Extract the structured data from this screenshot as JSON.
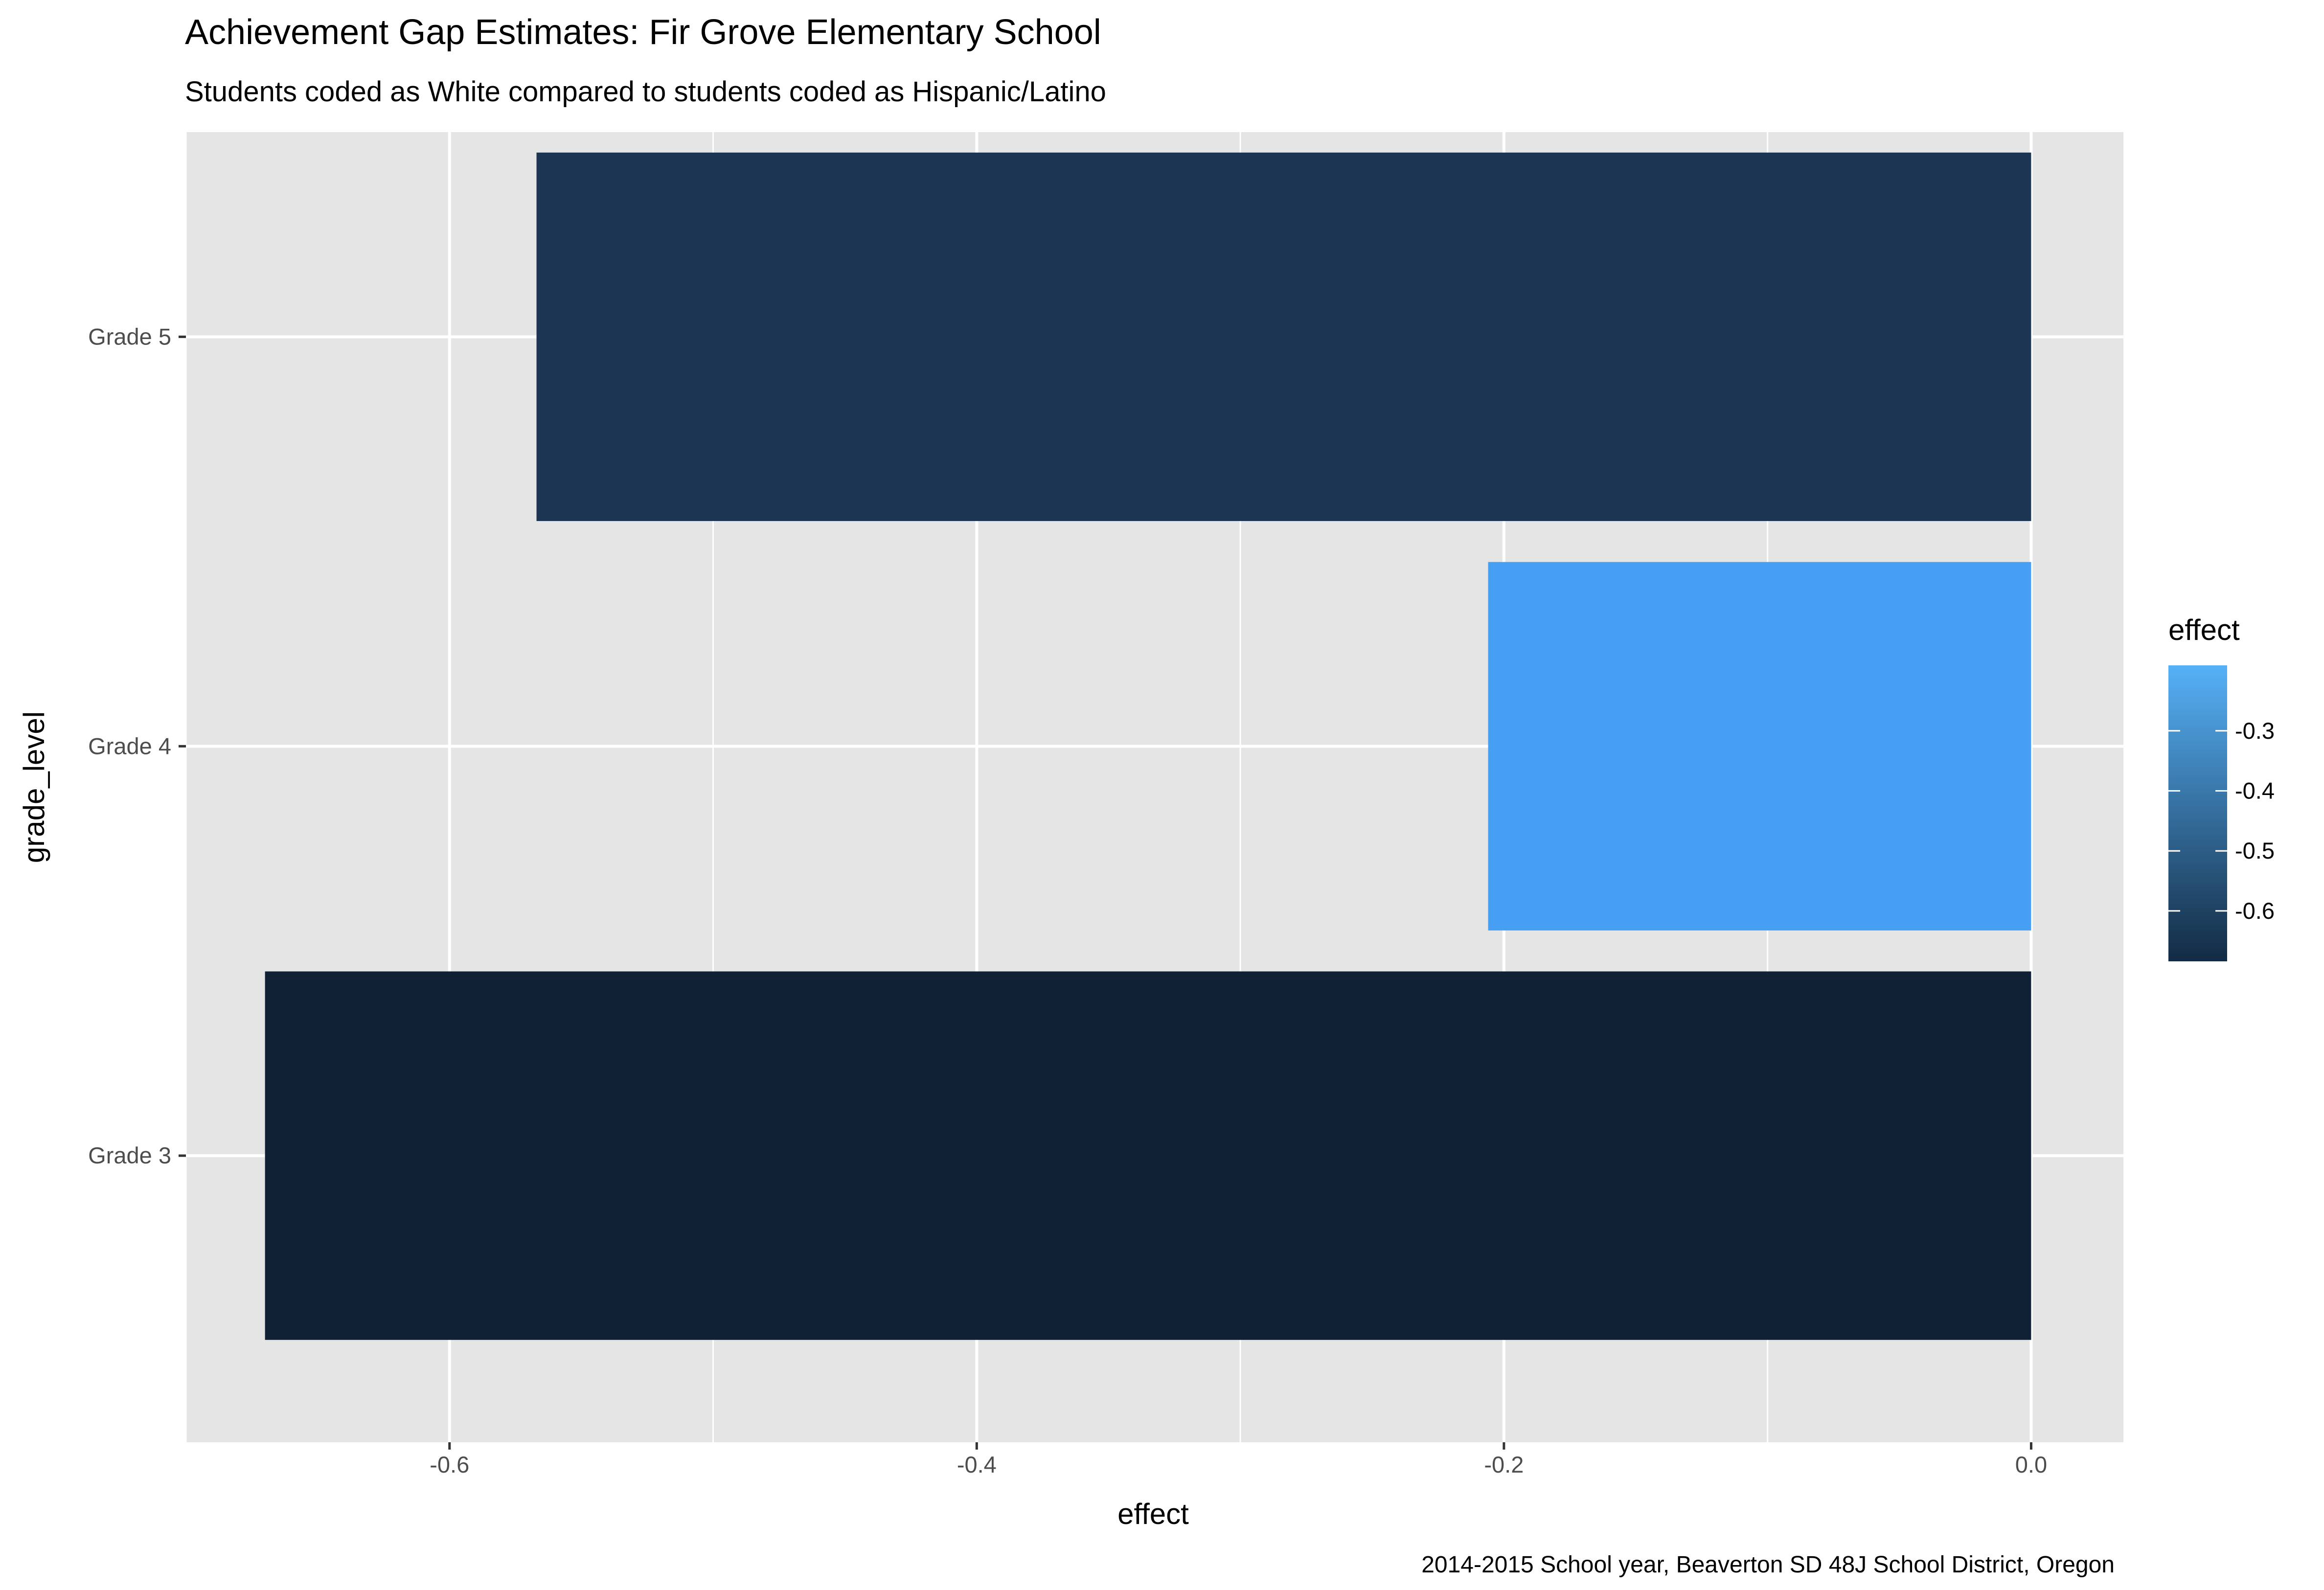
{
  "chart_data": {
    "type": "bar",
    "orientation": "horizontal",
    "title": "Achievement Gap Estimates: Fir Grove Elementary School",
    "subtitle": "Students coded as White compared to students coded as Hispanic/Latino",
    "caption": "2014-2015 School year, Beaverton SD 48J School District, Oregon",
    "xlabel": "effect",
    "ylabel": "grade_level",
    "categories": [
      "Grade 3",
      "Grade 4",
      "Grade 5"
    ],
    "values": [
      -0.67,
      -0.206,
      -0.567
    ],
    "xlim": [
      -0.7,
      0.035
    ],
    "x_ticks": [
      -0.6,
      -0.4,
      -0.2,
      0.0
    ],
    "x_tick_labels": [
      "-0.6",
      "-0.4",
      "-0.2",
      "0.0"
    ],
    "grid": true,
    "legend": {
      "title": "effect",
      "placement": "right",
      "ticks": [
        -0.3,
        -0.4,
        -0.5,
        -0.6
      ],
      "tick_labels": [
        "-0.3",
        "-0.4",
        "-0.5",
        "-0.6"
      ],
      "range": [
        -0.684,
        -0.191
      ],
      "color_low": "#132b43",
      "color_high": "#56b1f7"
    },
    "colors": {
      "panel_background": "#e5e5e5",
      "grid": "#ffffff",
      "tick_text": "#4d4d4d",
      "bar_colors": [
        "#112135",
        "#479ff4",
        "#1b3553"
      ]
    }
  }
}
